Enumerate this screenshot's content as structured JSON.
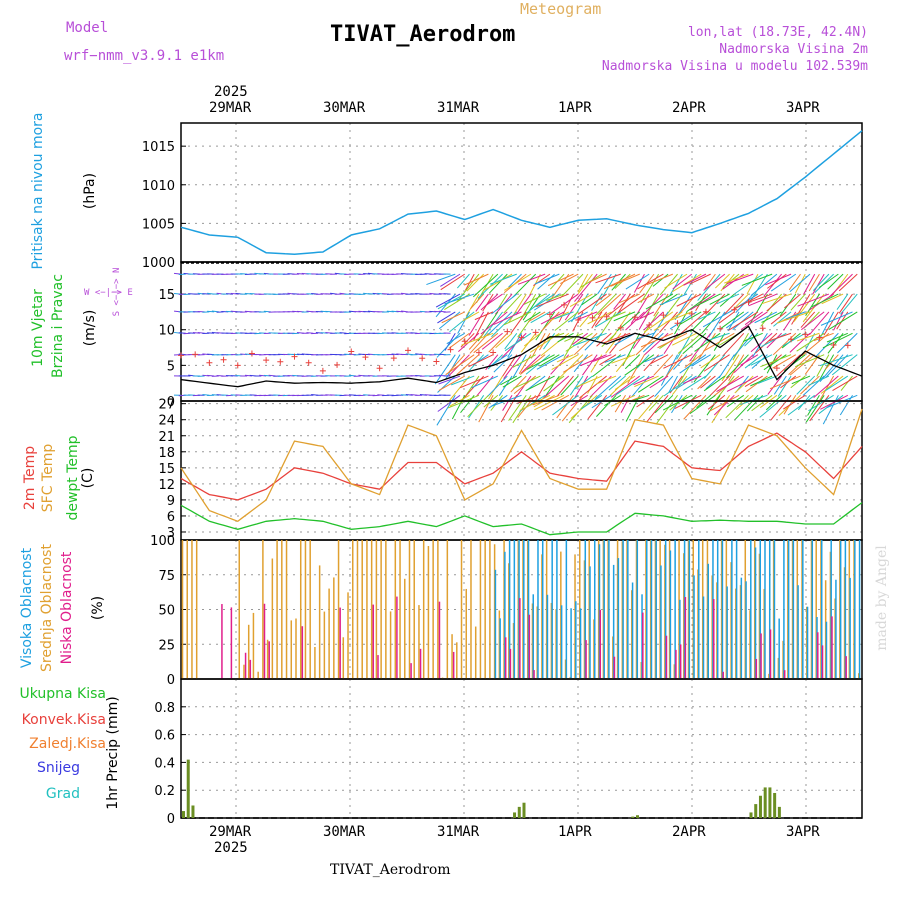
{
  "header": {
    "title": "TIVAT_Aerodrom",
    "model_label": "Model",
    "model_name": "wrf−nmm_v3.9.1 e1km",
    "meteogram": "Meteogram",
    "lonlat": "lon,lat (18.73E, 42.4N)",
    "altitude": "Nadmorska Visina 2m",
    "model_altitude": "Nadmorska Visina u modelu 102.539m"
  },
  "footer": {
    "station": "TIVAT_Aerodrom"
  },
  "watermark": "made by Angel",
  "time_axis": {
    "year": "2025",
    "days": [
      "29MAR",
      "30MAR",
      "31MAR",
      "1APR",
      "2APR",
      "3APR"
    ]
  },
  "panel_labels": {
    "pressure": "Pritisak na nivou mora",
    "pressure_unit": "(hPa)",
    "wind_title1": "10m Vjetar",
    "wind_title2": "Brzina i Pravac",
    "wind_unit": "(m/s)",
    "wind_compass": "W <−|−> E",
    "wind_compass_ns": "S <−|−> N",
    "temp_2m": "2m Temp",
    "temp_sfc": "SFC Temp",
    "temp_dew": "dewpt Temp",
    "temp_unit": "(C)",
    "cloud_high": "Visoka Oblacnost",
    "cloud_mid": "Srednja Oblacnost",
    "cloud_low": "Niska Oblacnost",
    "cloud_unit": "(%)",
    "precip_total": "Ukupna Kisa",
    "precip_conv": "Konvek.Kisa",
    "precip_frz": "Zaledj.Kisa",
    "precip_snow": "Snijeg",
    "precip_grad": "Grad",
    "precip_unit": "1hr Precip (mm)"
  },
  "colors": {
    "pressure": "#1ea0e0",
    "temp_2m": "#e8413c",
    "temp_sfc": "#e0a030",
    "temp_dew": "#22c02a",
    "cloud_high": "#1ea0e0",
    "cloud_mid": "#e0a030",
    "cloud_low": "#e01e8c",
    "precip": "#6b8e23",
    "wind_speed": "#000000",
    "gust": "#e8413c"
  },
  "chart_data": [
    {
      "type": "line",
      "panel": "pressure",
      "ylim": [
        1000,
        1018
      ],
      "yticks": [
        1000,
        1005,
        1010,
        1015
      ],
      "x_hours": [
        0,
        6,
        12,
        18,
        24,
        30,
        36,
        42,
        48,
        54,
        60,
        66,
        72,
        78,
        84,
        90,
        96,
        102,
        108,
        114,
        120,
        126,
        132,
        138,
        144
      ],
      "values": [
        1004.5,
        1003.5,
        1003.2,
        1001.2,
        1001.0,
        1001.3,
        1003.5,
        1004.3,
        1006.2,
        1006.6,
        1005.5,
        1006.8,
        1005.4,
        1004.5,
        1005.4,
        1005.6,
        1004.8,
        1004.2,
        1003.8,
        1005.0,
        1006.3,
        1008.2,
        1011.0,
        1014.0,
        1017.0
      ]
    },
    {
      "type": "line",
      "panel": "wind",
      "ylim": [
        0,
        19.5
      ],
      "yticks": [
        0,
        5,
        10,
        15
      ],
      "x_hours": [
        0,
        6,
        12,
        18,
        24,
        30,
        36,
        42,
        48,
        54,
        60,
        66,
        72,
        78,
        84,
        90,
        96,
        102,
        108,
        114,
        120,
        126,
        132,
        138,
        144
      ],
      "values": [
        3.0,
        2.5,
        2.0,
        2.8,
        2.5,
        2.6,
        2.5,
        2.7,
        3.2,
        2.6,
        4.0,
        5.0,
        6.5,
        9.0,
        9.0,
        8.0,
        9.5,
        8.5,
        10.0,
        7.5,
        10.5,
        3.0,
        7.0,
        5.0,
        3.5
      ]
    },
    {
      "type": "line",
      "panel": "temperature",
      "ylim": [
        1.5,
        27.5
      ],
      "yticks": [
        3,
        6,
        9,
        12,
        15,
        18,
        21,
        24,
        27
      ],
      "x_hours": [
        0,
        6,
        12,
        18,
        24,
        30,
        36,
        42,
        48,
        54,
        60,
        66,
        72,
        78,
        84,
        90,
        96,
        102,
        108,
        114,
        120,
        126,
        132,
        138,
        144
      ],
      "series": [
        {
          "name": "2m Temp",
          "values": [
            13,
            10,
            9,
            11,
            15,
            14,
            12,
            11,
            16,
            16,
            12,
            14,
            18,
            14,
            13,
            12.5,
            20,
            19,
            15,
            14.5,
            19,
            21.5,
            18,
            13,
            19
          ]
        },
        {
          "name": "SFC Temp",
          "values": [
            15,
            7,
            5,
            9,
            20,
            19,
            12,
            10,
            23,
            21,
            9,
            12,
            22,
            13,
            11,
            11,
            24,
            23,
            13,
            12,
            23,
            21,
            15,
            10,
            26
          ]
        },
        {
          "name": "dewpt Temp",
          "values": [
            8,
            5,
            3.5,
            5,
            5.5,
            5,
            3.5,
            4,
            5,
            4,
            6,
            4,
            4.5,
            2.5,
            3,
            3,
            6.5,
            6,
            5,
            5.2,
            5,
            5,
            4.5,
            4.5,
            8.5
          ]
        }
      ]
    },
    {
      "type": "bar",
      "panel": "cloud",
      "ylim": [
        0,
        100
      ],
      "yticks": [
        0,
        25,
        50,
        75,
        100
      ]
    },
    {
      "type": "bar",
      "panel": "precip",
      "ylim": [
        0,
        1.0
      ],
      "yticks": [
        0,
        0.2,
        0.4,
        0.6,
        0.8
      ],
      "x_hours": [
        0,
        1,
        2,
        3,
        4,
        5,
        70,
        71,
        72,
        95,
        96,
        120,
        121,
        122,
        123,
        124,
        125,
        126
      ],
      "values": [
        0.05,
        0.42,
        0.09,
        0,
        0,
        0,
        0.04,
        0.08,
        0.11,
        0.01,
        0.02,
        0.04,
        0.1,
        0.16,
        0.22,
        0.22,
        0.18,
        0.08
      ]
    }
  ]
}
